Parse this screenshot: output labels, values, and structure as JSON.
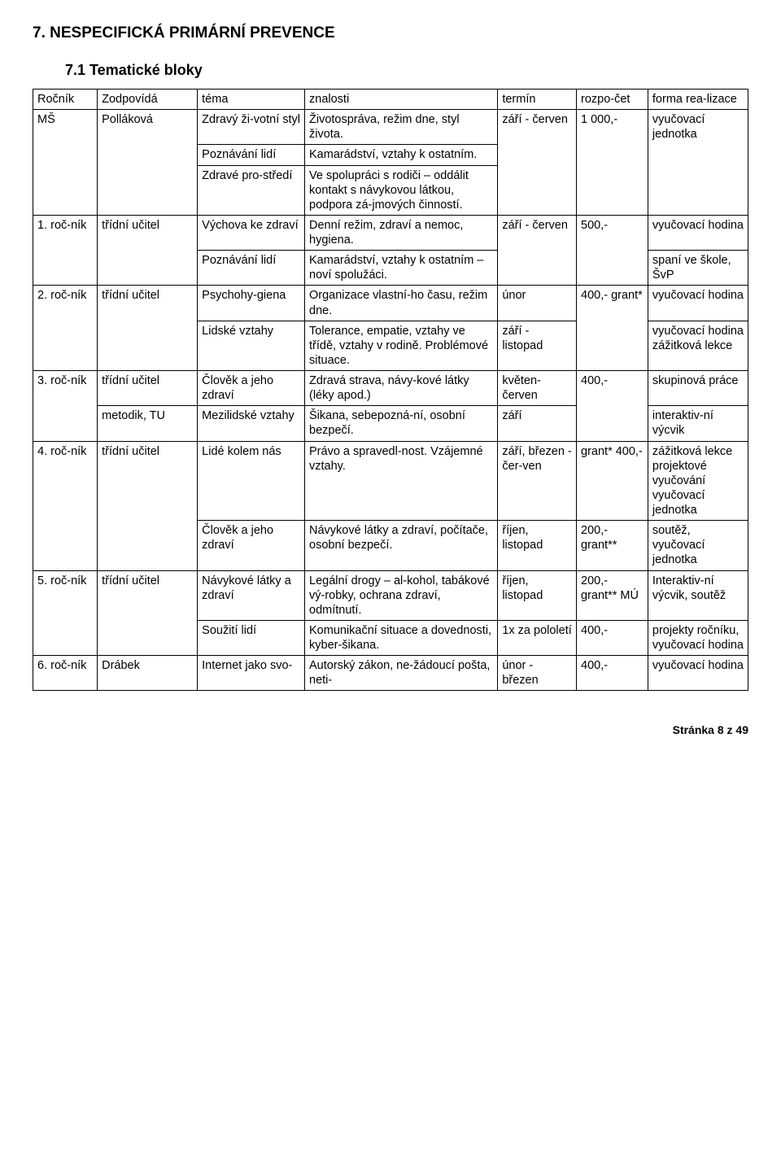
{
  "heading1": "7. NESPECIFICKÁ PRIMÁRNÍ PREVENCE",
  "heading2": "7.1    Tematické bloky",
  "header": {
    "c1": "Ročník",
    "c2": "Zodpovídá",
    "c3": "téma",
    "c4": "znalosti",
    "c5": "termín",
    "c6": "rozpo-čet",
    "c7": "forma rea-lizace"
  },
  "r_ms": {
    "rocnik": "MŠ",
    "zodp": "Polláková",
    "t1": "Zdravý ži-votní styl",
    "z1": "Životospráva, režim dne, styl života.",
    "t2": "Poznávání lidí",
    "z2": "Kamarádství, vztahy k ostatním.",
    "t3": "Zdravé pro-středí",
    "z3": "Ve spolupráci s rodiči – oddálit kontakt s návykovou látkou, podpora zá-jmových činností.",
    "termin": "září - červen",
    "rozp": "1 000,-",
    "forma": "vyučovací jednotka"
  },
  "r1": {
    "rocnik": "1. roč-ník",
    "zodp": "třídní učitel",
    "t1": "Výchova ke zdraví",
    "z1": "Denní režim, zdraví a nemoc, hygiena.",
    "t2": "Poznávání lidí",
    "z2": "Kamarádství, vztahy k ostatním – noví spolužáci.",
    "termin": "září - červen",
    "rozp": "500,-",
    "f1": "vyučovací hodina",
    "f2": "spaní ve škole, ŠvP"
  },
  "r2": {
    "rocnik": "2. roč-ník",
    "zodp": "třídní učitel",
    "t1": "Psychohy-giena",
    "z1": "Organizace vlastní-ho času, režim dne.",
    "t2": "Lidské vztahy",
    "z2": "Tolerance, empatie, vztahy ve třídě, vztahy v rodině. Problémové situace.",
    "ter1": "únor",
    "ter2": "září - listopad",
    "rozp": "400,- grant*",
    "f1": "vyučovací hodina",
    "f2": "vyučovací hodina zážitková lekce"
  },
  "r3": {
    "rocnik": "3. roč-ník",
    "zodp1": "třídní učitel",
    "zodp2": "metodik, TU",
    "t1": "Člověk a jeho zdraví",
    "z1": "Zdravá strava, návy-kové látky (léky apod.)",
    "t2": "Mezilidské vztahy",
    "z2": "Šikana, sebepozná-ní, osobní bezpečí.",
    "ter1": "květen- červen",
    "ter2": "září",
    "rozp": "400,-",
    "f1": "skupinová práce",
    "f2": "interaktiv-ní výcvik"
  },
  "r4": {
    "rocnik": "4. roč-ník",
    "zodp": "třídní učitel",
    "t1": "Lidé kolem nás",
    "z1": "Právo a spravedl-nost. Vzájemné vztahy.",
    "t2": "Člověk a jeho zdraví",
    "z2": "Návykové látky a zdraví, počítače, osobní bezpečí.",
    "ter1": "září, březen - čer-ven",
    "ter2": "říjen, listopad",
    "rozp1": "grant* 400,-",
    "rozp2": "200,- grant**",
    "f1": "zážitková lekce projektové vyučování vyučovací jednotka",
    "f2": "soutěž, vyučovací jednotka"
  },
  "r5": {
    "rocnik": "5. roč-ník",
    "zodp": "třídní učitel",
    "t1": "Návykové látky a zdraví",
    "z1": "Legální drogy – al-kohol, tabákové vý-robky, ochrana zdraví, odmítnutí.",
    "t2": "Soužití lidí",
    "z2": "Komunikační situace a dovednosti, kyber-šikana.",
    "ter1": "říjen, listopad",
    "ter2": "1x za pololetí",
    "rozp1": "200,- grant** MÚ",
    "rozp2": "400,-",
    "f1": "Interaktiv-ní výcvik, soutěž",
    "f2": "projekty ročníku, vyučovací hodina"
  },
  "r6": {
    "rocnik": "6. roč-ník",
    "zodp": "Drábek",
    "t1": "Internet jako svo-",
    "z1": "Autorský zákon, ne-žádoucí pošta, neti-",
    "ter": "únor - březen",
    "rozp": "400,-",
    "f1": "vyučovací hodina"
  },
  "footer": "Stránka 8 z 49"
}
